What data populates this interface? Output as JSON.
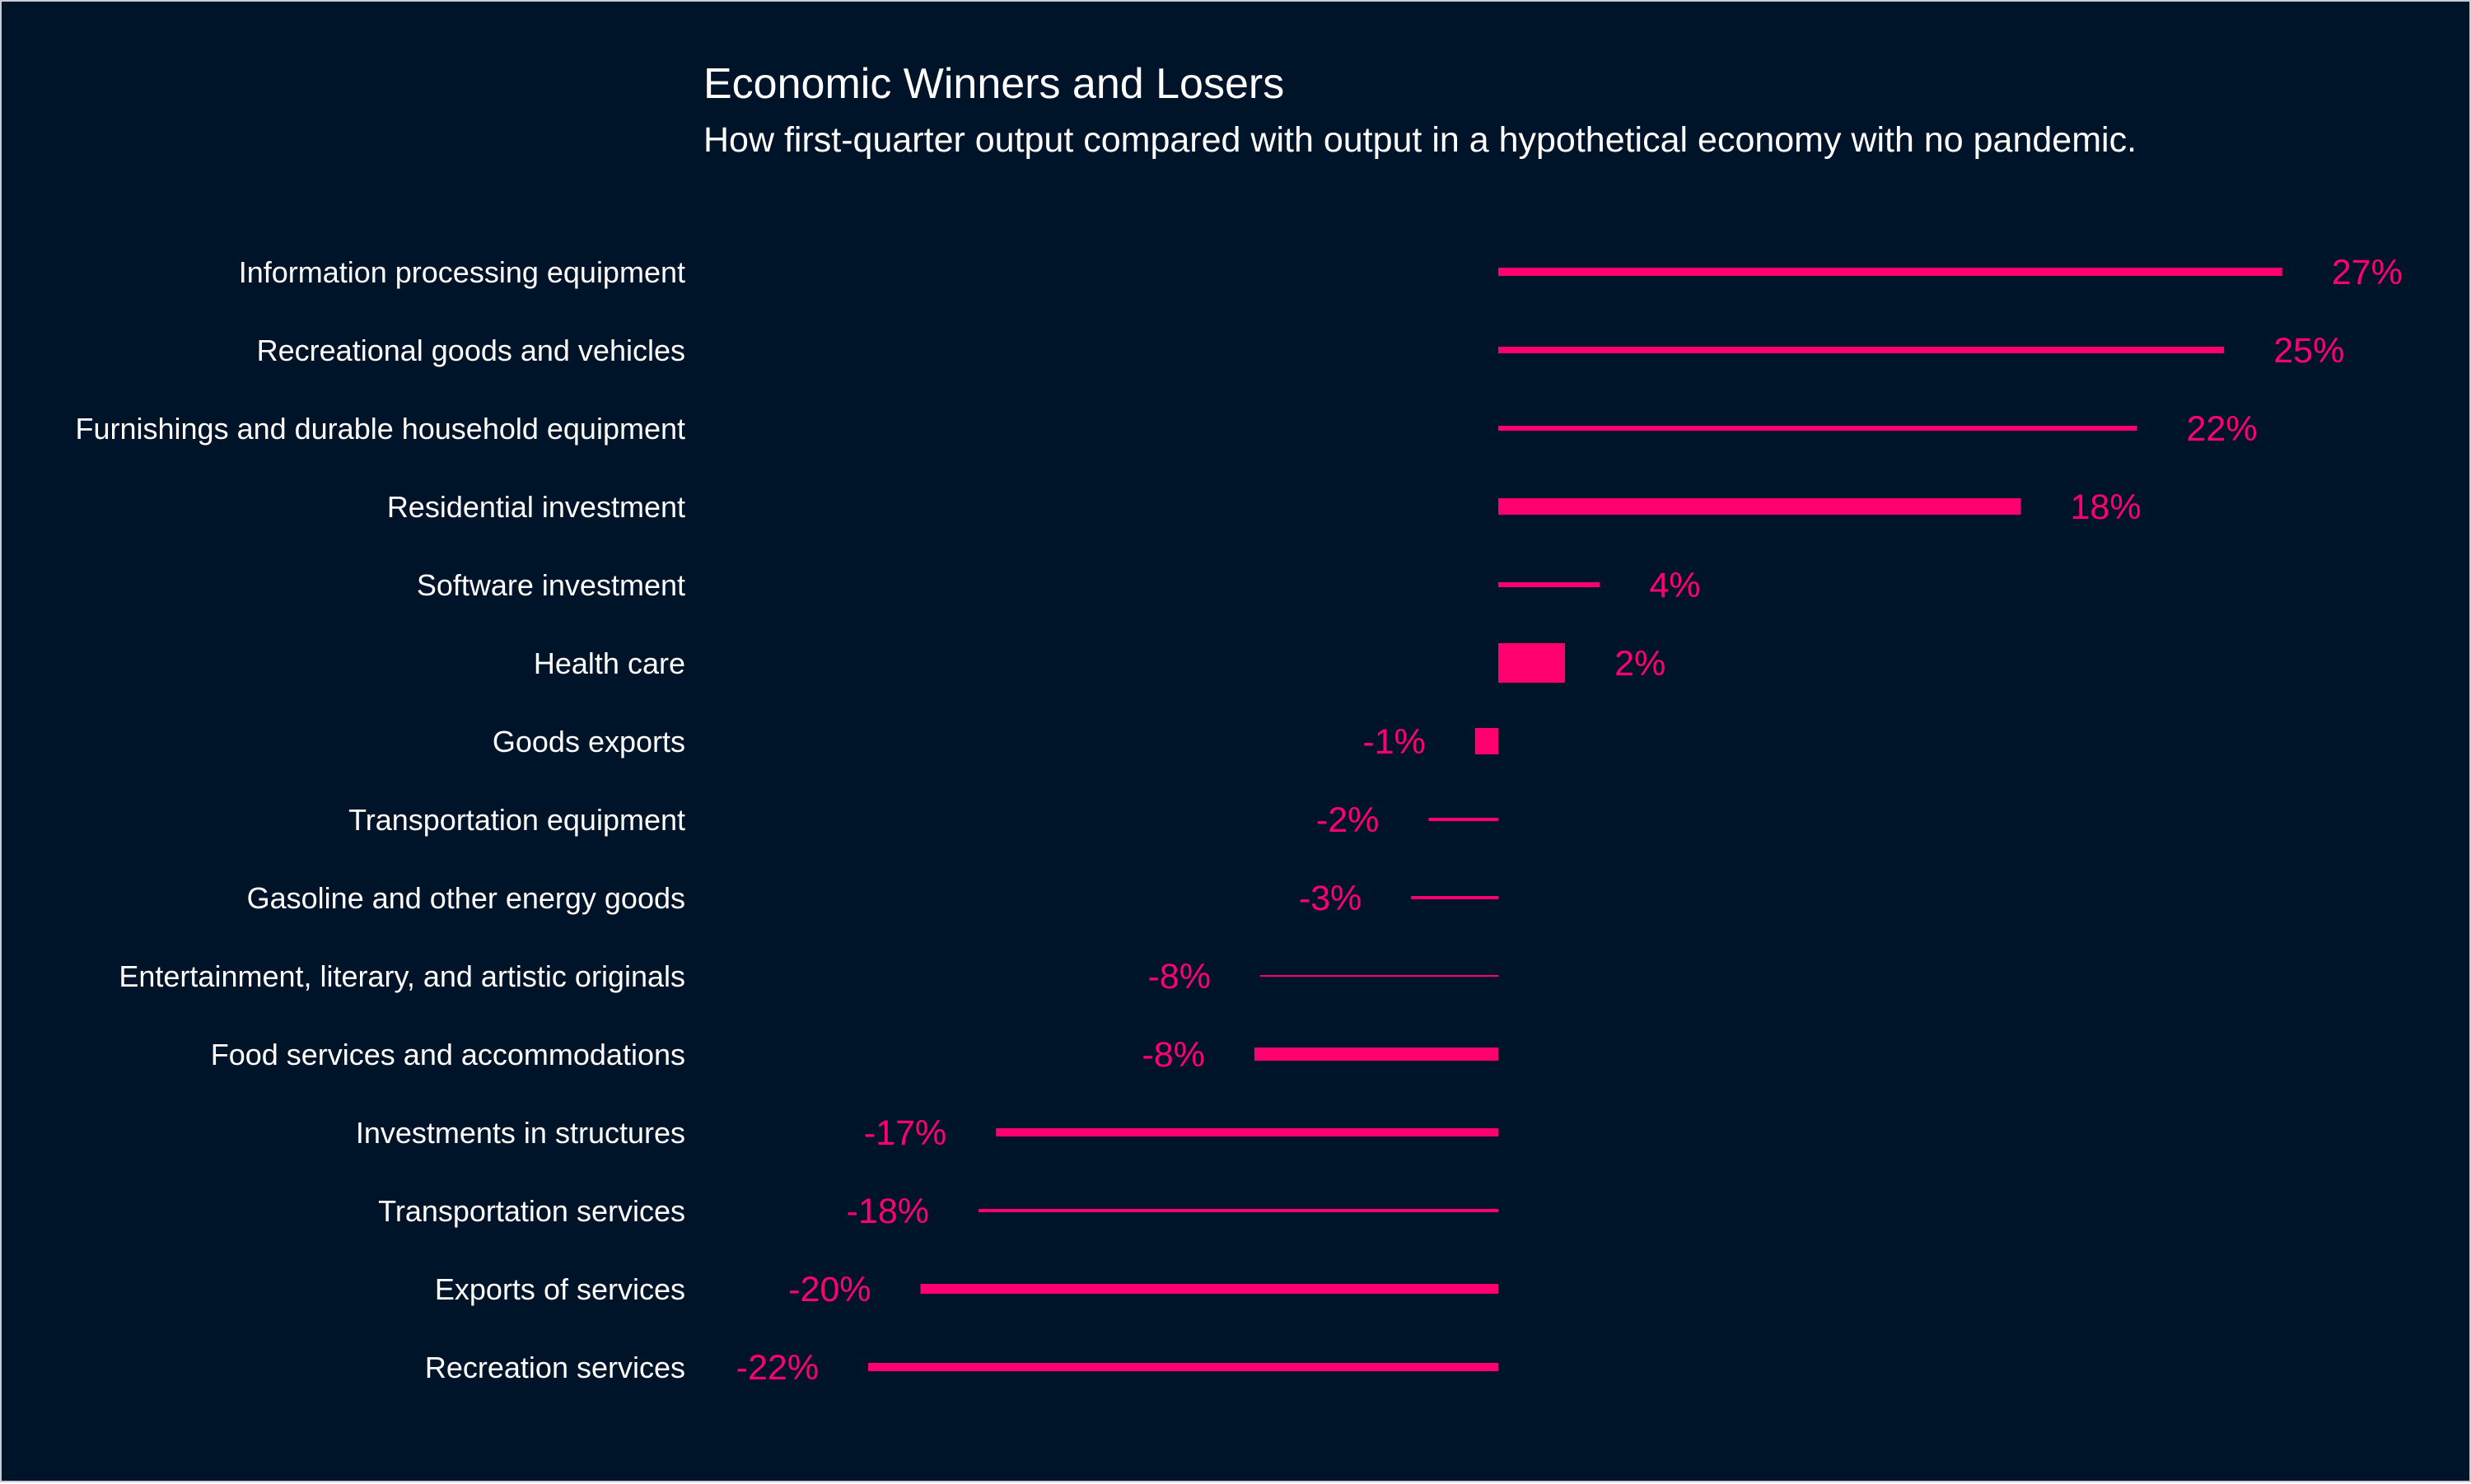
{
  "chart_data": {
    "type": "bar",
    "title": "Economic Winners and Losers",
    "subtitle": "How first-quarter output compared with output in a hypothetical economy with no pandemic.",
    "categories": [
      "Information processing equipment",
      "Recreational goods and vehicles",
      "Furnishings and durable household equipment",
      "Residential investment",
      "Software investment",
      "Health care",
      "Goods exports",
      "Transportation equipment",
      "Gasoline and other energy goods",
      "Entertainment, literary, and artistic originals",
      "Food services and accommodations",
      "Investments in structures",
      "Transportation services",
      "Exports of services",
      "Recreation services"
    ],
    "values": [
      27,
      25,
      22,
      18,
      3.5,
      2.3,
      -0.8,
      -2.4,
      -3,
      -8.2,
      -8.4,
      -17.3,
      -17.9,
      -19.9,
      -21.7
    ],
    "value_labels": [
      "27%",
      "25%",
      "22%",
      "18%",
      "4%",
      "2%",
      "-1%",
      "-2%",
      "-3%",
      "-8%",
      "-8%",
      "-17%",
      "-18%",
      "-20%",
      "-22%"
    ],
    "bar_weight": [
      2.5,
      2,
      1.5,
      5,
      1.5,
      12,
      8,
      1,
      1,
      0.5,
      4,
      2.5,
      1,
      3,
      2.5
    ],
    "xlim": [
      -30,
      30
    ],
    "xlabel": "",
    "ylabel": "",
    "grid": false,
    "legend": "none",
    "colors": {
      "background": "#001429",
      "bar": "#ff006e",
      "text": "#ffffff"
    }
  }
}
